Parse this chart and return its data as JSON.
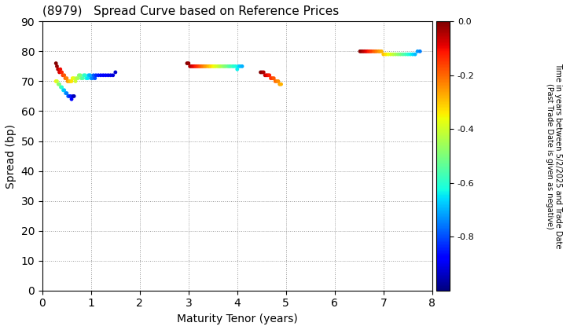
{
  "title": "(8979)   Spread Curve based on Reference Prices",
  "xlabel": "Maturity Tenor (years)",
  "ylabel": "Spread (bp)",
  "colorbar_label": "Time in years between 5/2/2025 and Trade Date\n(Past Trade Date is given as negative)",
  "xlim": [
    0,
    8
  ],
  "ylim": [
    0,
    90
  ],
  "xticks": [
    0,
    1,
    2,
    3,
    4,
    5,
    6,
    7,
    8
  ],
  "yticks": [
    0,
    10,
    20,
    30,
    40,
    50,
    60,
    70,
    80,
    90
  ],
  "cmap": "jet",
  "vmin": -1.0,
  "vmax": 0.0,
  "colorbar_ticks": [
    0.0,
    -0.2,
    -0.4,
    -0.6,
    -0.8
  ],
  "colorbar_ticklabels": [
    "0.0",
    "-0.2",
    "-0.4",
    "-0.6",
    "-0.8"
  ],
  "clusters": [
    {
      "x": [
        0.28,
        0.3,
        0.32,
        0.35,
        0.37,
        0.4,
        0.42,
        0.45,
        0.47,
        0.5,
        0.52,
        0.55,
        0.57,
        0.6,
        0.62,
        0.65,
        0.68,
        0.7,
        0.73,
        0.75,
        0.78,
        0.8,
        0.83,
        0.85,
        0.88,
        0.9,
        0.93,
        0.95,
        0.98,
        1.0,
        1.03,
        1.05,
        1.08,
        1.1,
        1.15,
        1.2,
        1.25,
        1.3,
        1.35,
        1.4,
        1.45,
        1.5
      ],
      "y": [
        76,
        75,
        74,
        73,
        74,
        73,
        72,
        72,
        71,
        71,
        70,
        70,
        70,
        70,
        71,
        71,
        70,
        71,
        71,
        72,
        72,
        71,
        71,
        72,
        72,
        71,
        71,
        72,
        72,
        71,
        71,
        72,
        71,
        72,
        72,
        72,
        72,
        72,
        72,
        72,
        72,
        73
      ],
      "c": [
        0.0,
        -0.02,
        -0.05,
        -0.08,
        -0.1,
        -0.13,
        -0.15,
        -0.18,
        -0.2,
        -0.23,
        -0.25,
        -0.28,
        -0.3,
        -0.33,
        -0.35,
        -0.38,
        -0.4,
        -0.43,
        -0.45,
        -0.48,
        -0.5,
        -0.52,
        -0.55,
        -0.58,
        -0.6,
        -0.62,
        -0.65,
        -0.68,
        -0.7,
        -0.72,
        -0.75,
        -0.78,
        -0.8,
        -0.83,
        -0.85,
        -0.87,
        -0.88,
        -0.89,
        -0.9,
        -0.91,
        -0.92,
        -0.93
      ]
    },
    {
      "x": [
        0.28,
        0.3,
        0.33,
        0.35,
        0.38,
        0.4,
        0.43,
        0.45,
        0.48,
        0.5,
        0.53,
        0.55,
        0.58,
        0.6,
        0.63,
        0.65
      ],
      "y": [
        70,
        70,
        69,
        69,
        68,
        68,
        67,
        67,
        66,
        66,
        65,
        65,
        65,
        64,
        65,
        65
      ],
      "c": [
        -0.35,
        -0.4,
        -0.45,
        -0.5,
        -0.55,
        -0.6,
        -0.65,
        -0.68,
        -0.72,
        -0.75,
        -0.78,
        -0.82,
        -0.85,
        -0.88,
        -0.92,
        -0.95
      ]
    },
    {
      "x": [
        2.97,
        3.0,
        3.03,
        3.06,
        3.09,
        3.12,
        3.15,
        3.18,
        3.21,
        3.24,
        3.27,
        3.3,
        3.33,
        3.36,
        3.4,
        3.43,
        3.46,
        3.5,
        3.53,
        3.56,
        3.6,
        3.63,
        3.66,
        3.7,
        3.73,
        3.76,
        3.8,
        3.83,
        3.86,
        3.9,
        3.93,
        3.97,
        4.0,
        4.03,
        4.06,
        4.1
      ],
      "y": [
        76,
        76,
        75,
        75,
        75,
        75,
        75,
        75,
        75,
        75,
        75,
        75,
        75,
        75,
        75,
        75,
        75,
        75,
        75,
        75,
        75,
        75,
        75,
        75,
        75,
        75,
        75,
        75,
        75,
        75,
        75,
        75,
        74,
        75,
        75,
        75
      ],
      "c": [
        0.0,
        -0.02,
        -0.04,
        -0.06,
        -0.08,
        -0.1,
        -0.12,
        -0.14,
        -0.16,
        -0.18,
        -0.2,
        -0.22,
        -0.24,
        -0.26,
        -0.28,
        -0.3,
        -0.32,
        -0.34,
        -0.36,
        -0.38,
        -0.4,
        -0.42,
        -0.44,
        -0.46,
        -0.48,
        -0.5,
        -0.52,
        -0.54,
        -0.56,
        -0.58,
        -0.6,
        -0.62,
        -0.64,
        -0.66,
        -0.68,
        -0.7
      ]
    },
    {
      "x": [
        4.48,
        4.51,
        4.54,
        4.57,
        4.6,
        4.63,
        4.66,
        4.69,
        4.72,
        4.75,
        4.78,
        4.81,
        4.84,
        4.87,
        4.9
      ],
      "y": [
        73,
        73,
        73,
        72,
        72,
        72,
        72,
        71,
        71,
        71,
        70,
        70,
        70,
        69,
        69
      ],
      "c": [
        0.0,
        -0.02,
        -0.04,
        -0.06,
        -0.08,
        -0.1,
        -0.12,
        -0.14,
        -0.16,
        -0.18,
        -0.2,
        -0.22,
        -0.24,
        -0.26,
        -0.28
      ]
    },
    {
      "x": [
        6.52,
        6.55,
        6.58,
        6.61,
        6.64,
        6.67,
        6.7,
        6.73,
        6.76,
        6.8,
        6.83,
        6.86,
        6.9,
        6.93,
        6.96,
        7.0,
        7.05,
        7.1,
        7.15,
        7.2,
        7.25,
        7.3,
        7.35,
        7.4,
        7.45,
        7.5,
        7.55,
        7.6,
        7.65,
        7.7,
        7.75
      ],
      "y": [
        80,
        80,
        80,
        80,
        80,
        80,
        80,
        80,
        80,
        80,
        80,
        80,
        80,
        80,
        80,
        79,
        79,
        79,
        79,
        79,
        79,
        79,
        79,
        79,
        79,
        79,
        79,
        79,
        79,
        80,
        80
      ],
      "c": [
        0.0,
        -0.02,
        -0.04,
        -0.06,
        -0.08,
        -0.1,
        -0.12,
        -0.14,
        -0.16,
        -0.18,
        -0.2,
        -0.22,
        -0.24,
        -0.26,
        -0.28,
        -0.3,
        -0.33,
        -0.36,
        -0.39,
        -0.42,
        -0.45,
        -0.48,
        -0.51,
        -0.54,
        -0.57,
        -0.6,
        -0.63,
        -0.66,
        -0.69,
        -0.72,
        -0.75
      ]
    }
  ]
}
